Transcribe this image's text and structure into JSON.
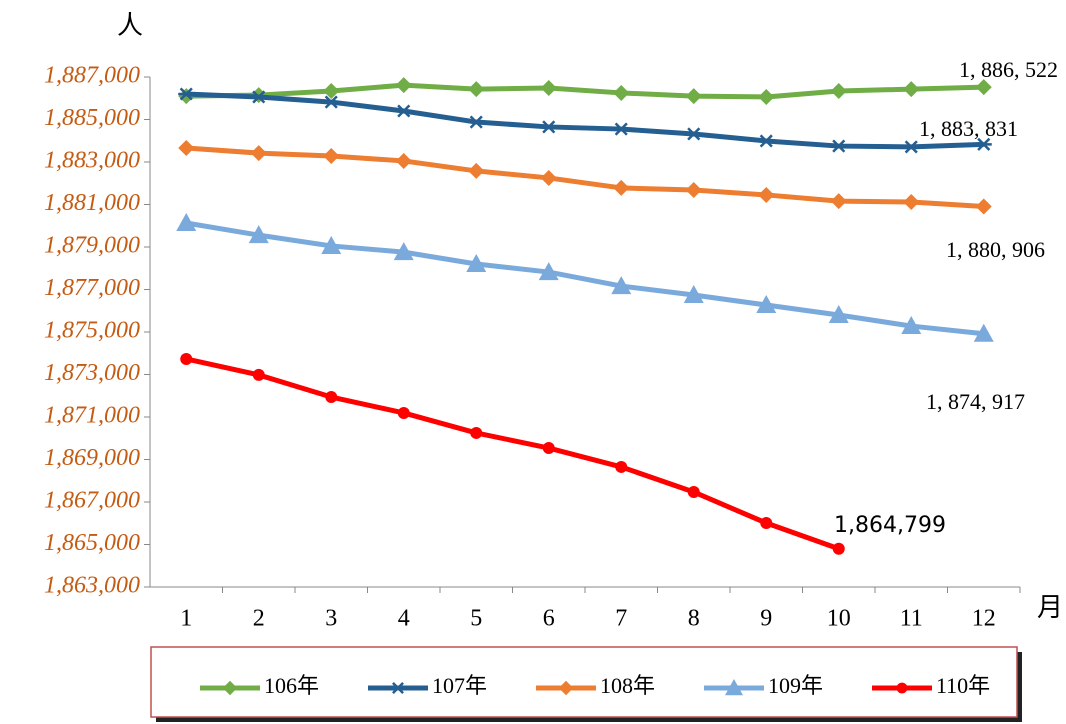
{
  "chart_data": {
    "type": "line",
    "y_axis_label": "人",
    "x_axis_label": "月",
    "categories": [
      "1",
      "2",
      "3",
      "4",
      "5",
      "6",
      "7",
      "8",
      "9",
      "10",
      "11",
      "12"
    ],
    "ylim": [
      1863000,
      1887000
    ],
    "yticks": [
      {
        "value": 1863000,
        "label": "1,863,000"
      },
      {
        "value": 1865000,
        "label": "1,865,000"
      },
      {
        "value": 1867000,
        "label": "1,867,000"
      },
      {
        "value": 1869000,
        "label": "1,869,000"
      },
      {
        "value": 1871000,
        "label": "1,871,000"
      },
      {
        "value": 1873000,
        "label": "1,873,000"
      },
      {
        "value": 1875000,
        "label": "1,875,000"
      },
      {
        "value": 1877000,
        "label": "1,877,000"
      },
      {
        "value": 1879000,
        "label": "1,879,000"
      },
      {
        "value": 1881000,
        "label": "1,881,000"
      },
      {
        "value": 1883000,
        "label": "1,883,000"
      },
      {
        "value": 1885000,
        "label": "1,885,000"
      },
      {
        "value": 1887000,
        "label": "1,887,000"
      }
    ],
    "series": [
      {
        "name": "106年",
        "color": "#70ad47",
        "marker": "diamond",
        "values": [
          1886100,
          1886150,
          1886340,
          1886620,
          1886430,
          1886480,
          1886250,
          1886100,
          1886060,
          1886340,
          1886430,
          1886522
        ],
        "value_labels": [
          null,
          null,
          null,
          null,
          null,
          null,
          null,
          null,
          null,
          null,
          null,
          "1, 886, 522"
        ]
      },
      {
        "name": "107年",
        "color": "#255e91",
        "marker": "asterisk",
        "values": [
          1886200,
          1886060,
          1885820,
          1885400,
          1884880,
          1884650,
          1884550,
          1884320,
          1883990,
          1883750,
          1883710,
          1883831
        ],
        "value_labels": [
          null,
          null,
          null,
          null,
          null,
          null,
          null,
          null,
          null,
          null,
          null,
          "1, 883, 831"
        ]
      },
      {
        "name": "108年",
        "color": "#ed7d31",
        "marker": "diamond",
        "values": [
          1883660,
          1883420,
          1883280,
          1883050,
          1882580,
          1882250,
          1881780,
          1881680,
          1881450,
          1881160,
          1881120,
          1880906
        ],
        "value_labels": [
          null,
          null,
          null,
          null,
          null,
          null,
          null,
          null,
          null,
          null,
          null,
          "1, 880, 906"
        ]
      },
      {
        "name": "109年",
        "color": "#7aa9dc",
        "marker": "triangle",
        "values": [
          1880130,
          1879560,
          1879050,
          1878760,
          1878200,
          1877820,
          1877160,
          1876740,
          1876270,
          1875800,
          1875280,
          1874917
        ],
        "value_labels": [
          null,
          null,
          null,
          null,
          null,
          null,
          null,
          null,
          null,
          null,
          null,
          "1, 874, 917"
        ]
      },
      {
        "name": "110年",
        "color": "#ff0000",
        "marker": "circle",
        "values": [
          1873730,
          1872980,
          1871940,
          1871190,
          1870250,
          1869540,
          1868650,
          1867470,
          1866010,
          1864799,
          null,
          null
        ],
        "value_labels": [
          null,
          null,
          null,
          null,
          null,
          null,
          null,
          null,
          null,
          "1,864,799",
          null,
          null
        ]
      }
    ]
  }
}
